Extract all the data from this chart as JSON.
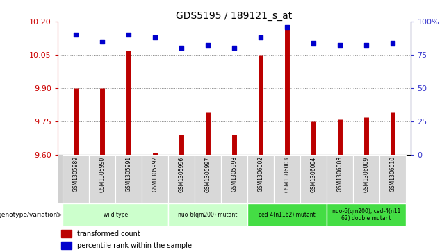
{
  "title": "GDS5195 / 189121_s_at",
  "samples": [
    "GSM1305989",
    "GSM1305990",
    "GSM1305991",
    "GSM1305992",
    "GSM1305996",
    "GSM1305997",
    "GSM1305998",
    "GSM1306002",
    "GSM1306003",
    "GSM1306004",
    "GSM1306008",
    "GSM1306009",
    "GSM1306010"
  ],
  "transformed_count": [
    9.9,
    9.9,
    10.07,
    9.61,
    9.69,
    9.79,
    9.69,
    10.05,
    10.17,
    9.75,
    9.76,
    9.77,
    9.79
  ],
  "percentile_rank": [
    90,
    85,
    90,
    88,
    80,
    82,
    80,
    88,
    96,
    84,
    82,
    82,
    84
  ],
  "ylim_left": [
    9.6,
    10.2
  ],
  "ylim_right": [
    0,
    100
  ],
  "yticks_left": [
    9.6,
    9.75,
    9.9,
    10.05,
    10.2
  ],
  "yticks_right": [
    0,
    25,
    50,
    75,
    100
  ],
  "group_defs": [
    {
      "label": "wild type",
      "start": 0,
      "end": 3,
      "color": "#ccffcc"
    },
    {
      "label": "nuo-6(qm200) mutant",
      "start": 4,
      "end": 6,
      "color": "#ccffcc"
    },
    {
      "label": "ced-4(n1162) mutant",
      "start": 7,
      "end": 9,
      "color": "#44dd44"
    },
    {
      "label": "nuo-6(qm200); ced-4(n11\n62) double mutant",
      "start": 10,
      "end": 12,
      "color": "#44dd44"
    }
  ],
  "bar_color": "#bb0000",
  "dot_color": "#0000cc",
  "baseline": 9.6,
  "grid_color": "#888888",
  "left_tick_color": "#cc0000",
  "right_tick_color": "#3333cc",
  "bg_plot": "#e8e8e8",
  "bg_labels": "#d0d0d0"
}
